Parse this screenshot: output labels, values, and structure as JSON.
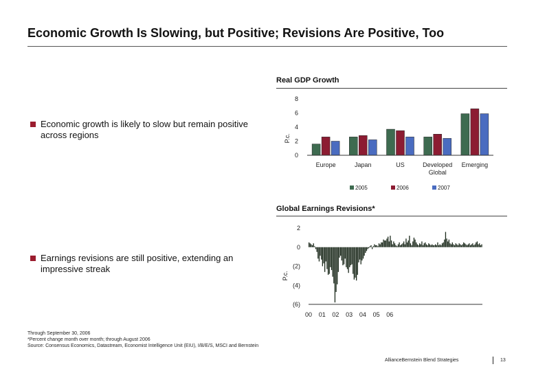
{
  "slide": {
    "title": "Economic Growth Is Slowing, but Positive; Revisions Are Positive, Too"
  },
  "bullets": [
    "Economic growth is likely to slow but remain positive across regions",
    "Earnings revisions are still positive, extending an impressive streak"
  ],
  "footnotes": [
    "Through September 30, 2006",
    "*Percent change month over month; through August 2006",
    "Source: Consensus Economics, Datastream, Economist Intelligence Unit (EIU), I/B/E/S, MSCI and Bernstein"
  ],
  "footer": {
    "brand": "AllianceBernstein Blend Strategies",
    "page": "13"
  },
  "colors": {
    "accent": "#9b1c2e",
    "series_2005": "#3e6b50",
    "series_2006": "#8c1c32",
    "series_2007": "#4a6cc0",
    "revision_bars": "#1c2a1c"
  },
  "chart_data": [
    {
      "type": "bar",
      "title": "Real GDP Growth",
      "ylabel": "P.c.",
      "ylim": [
        0,
        8
      ],
      "yticks": [
        "0",
        "2",
        "4",
        "6",
        "8"
      ],
      "categories": [
        "Europe",
        "Japan",
        "US",
        "Developed Global",
        "Emerging"
      ],
      "category_lines": [
        [
          "Europe"
        ],
        [
          "Japan"
        ],
        [
          "US"
        ],
        [
          "Developed",
          "Global"
        ],
        [
          "Emerging"
        ]
      ],
      "series": [
        {
          "name": "2005",
          "color": "#3e6b50",
          "values": [
            1.6,
            2.6,
            3.7,
            2.6,
            5.9
          ]
        },
        {
          "name": "2006",
          "color": "#8c1c32",
          "values": [
            2.6,
            2.8,
            3.5,
            3.0,
            6.6
          ]
        },
        {
          "name": "2007",
          "color": "#4a6cc0",
          "values": [
            2.0,
            2.2,
            2.6,
            2.4,
            5.9
          ]
        }
      ],
      "legend_position": "bottom",
      "grid": false
    },
    {
      "type": "bar",
      "title": "Global Earnings Revisions*",
      "ylabel": "P.c.",
      "ylim": [
        -6,
        2
      ],
      "yticks": [
        "(6)",
        "(4)",
        "(2)",
        "0",
        "2"
      ],
      "xticks": [
        "00",
        "01",
        "02",
        "03",
        "04",
        "05",
        "06"
      ],
      "x_start": "Jan 2000",
      "x_end": "Aug 2006",
      "values": [
        0.5,
        0.4,
        0.3,
        0.2,
        0.4,
        0.1,
        -0.2,
        -0.5,
        -1.2,
        -1.5,
        -0.9,
        -1.3,
        -2.0,
        -1.7,
        -2.6,
        -1.5,
        -2.3,
        -2.9,
        -2.8,
        -2.1,
        -2.4,
        -3.1,
        -3.8,
        -5.8,
        -4.7,
        -3.9,
        -2.6,
        -1.1,
        -0.9,
        -1.4,
        -1.9,
        -1.8,
        -1.2,
        -2.1,
        -2.3,
        -2.7,
        -2.1,
        -1.9,
        -1.8,
        -2.8,
        -3.4,
        -3.2,
        -3.5,
        -2.9,
        -1.6,
        -1.3,
        -1.8,
        -1.4,
        -1.2,
        -0.9,
        -0.6,
        -0.4,
        -0.2,
        -0.1,
        0.1,
        0.2,
        -0.2,
        0.1,
        0.3,
        0.2,
        0.2,
        0.1,
        0.4,
        0.3,
        0.5,
        0.5,
        0.8,
        0.7,
        0.7,
        0.9,
        1.1,
        0.6,
        1.2,
        0.7,
        0.3,
        0.6,
        0.4,
        0.2,
        0.1,
        0.3,
        0.5,
        0.2,
        0.3,
        0.4,
        0.6,
        0.3,
        0.9,
        0.5,
        0.7,
        1.2,
        0.4,
        0.2,
        0.6,
        1.0,
        0.8,
        0.5,
        0.3,
        0.2,
        0.4,
        0.3,
        0.6,
        0.2,
        0.4,
        0.5,
        0.3,
        0.2,
        0.4,
        0.3,
        0.2,
        0.3,
        0.2,
        0.2,
        0.3,
        0.2,
        0.5,
        0.2,
        0.3,
        0.2,
        0.4,
        0.5,
        0.8,
        1.6,
        0.9,
        0.6,
        0.8,
        0.4,
        0.3,
        0.5,
        0.3,
        0.2,
        0.4,
        0.3,
        0.2,
        0.4,
        0.3,
        0.2,
        0.3,
        0.5,
        0.4,
        0.3,
        0.2,
        0.3,
        0.4,
        0.2,
        0.3,
        0.4,
        0.2,
        0.3,
        0.5,
        0.6,
        0.3,
        0.4,
        0.2,
        0.3
      ],
      "legend_position": "none",
      "grid": false
    }
  ]
}
